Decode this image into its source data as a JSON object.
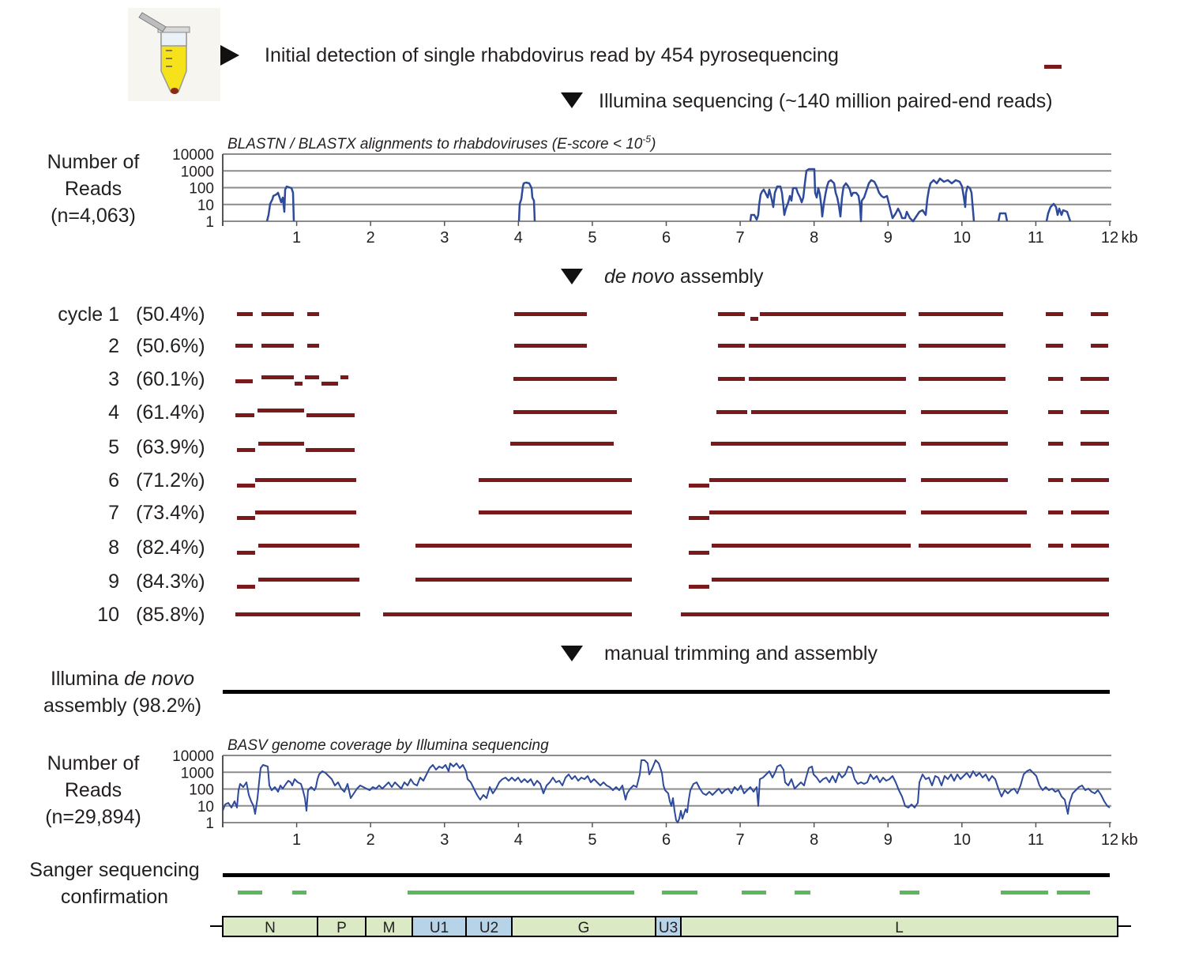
{
  "header": {
    "step_454": "Initial detection of single rhabdovirus read by 454 pyrosequencing",
    "step_illumina": "Illumina sequencing (~140 million paired-end reads)",
    "step_denovo_italic": "de novo",
    "step_denovo_rest": " assembly",
    "step_manual": "manual trimming and assembly"
  },
  "blast_panel": {
    "title_main": "BLASTN / BLASTX alignments to rhabdoviruses (E-score < 10",
    "title_sup": "-5",
    "title_end": ")",
    "ylabel_line1": "Number of",
    "ylabel_line2": "Reads",
    "ylabel_line3": "(n=4,063)",
    "yticks": [
      "10000",
      "1000",
      "100",
      "10",
      "1"
    ],
    "xticks": [
      "1",
      "2",
      "3",
      "4",
      "5",
      "6",
      "7",
      "8",
      "9",
      "10",
      "11",
      "12"
    ],
    "xunit": "kb"
  },
  "assembly": {
    "cycle_prefix": "cycle",
    "cycles": [
      {
        "label": "1",
        "pct": "(50.4%)"
      },
      {
        "label": "2",
        "pct": "(50.6%)"
      },
      {
        "label": "3",
        "pct": "(60.1%)"
      },
      {
        "label": "4",
        "pct": "(61.4%)"
      },
      {
        "label": "5",
        "pct": "(63.9%)"
      },
      {
        "label": "6",
        "pct": "(71.2%)"
      },
      {
        "label": "7",
        "pct": "(73.4%)"
      },
      {
        "label": "8",
        "pct": "(82.4%)"
      },
      {
        "label": "9",
        "pct": "(84.3%)"
      },
      {
        "label": "10",
        "pct": "(85.8%)"
      }
    ],
    "illumina_line1_pre": "Illumina ",
    "illumina_line1_italic": "de novo",
    "illumina_line2": "assembly (98.2%)"
  },
  "coverage_panel": {
    "title": "BASV genome coverage by Illumina sequencing",
    "ylabel_line1": "Number of",
    "ylabel_line2": "Reads",
    "ylabel_line3": "(n=29,894)",
    "yticks": [
      "10000",
      "1000",
      "100",
      "10",
      "1"
    ],
    "xticks": [
      "1",
      "2",
      "3",
      "4",
      "5",
      "6",
      "7",
      "8",
      "9",
      "10",
      "11",
      "12"
    ],
    "xunit": "kb"
  },
  "sanger": {
    "line1": "Sanger sequencing",
    "line2": "confirmation"
  },
  "genome_map": {
    "genes": [
      "N",
      "P",
      "M",
      "U1",
      "U2",
      "G",
      "U3",
      "L"
    ]
  },
  "colors": {
    "contig": "#7b1a1c",
    "trace": "#2e4a9a",
    "sanger": "#5cb85c",
    "gene_green": "#dbeac4",
    "gene_blue": "#b7d3e8",
    "grid": "#8c8c8c"
  }
}
